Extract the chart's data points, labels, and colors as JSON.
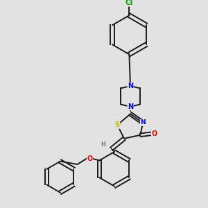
{
  "bg_color": "#e2e2e2",
  "bond_color": "#1a1a1a",
  "bond_width": 1.4,
  "atom_colors": {
    "N": "#0000ee",
    "O": "#ee0000",
    "S": "#bbbb00",
    "Cl": "#00aa00",
    "H": "#777777",
    "C": "#1a1a1a"
  },
  "font_size": 7.0
}
